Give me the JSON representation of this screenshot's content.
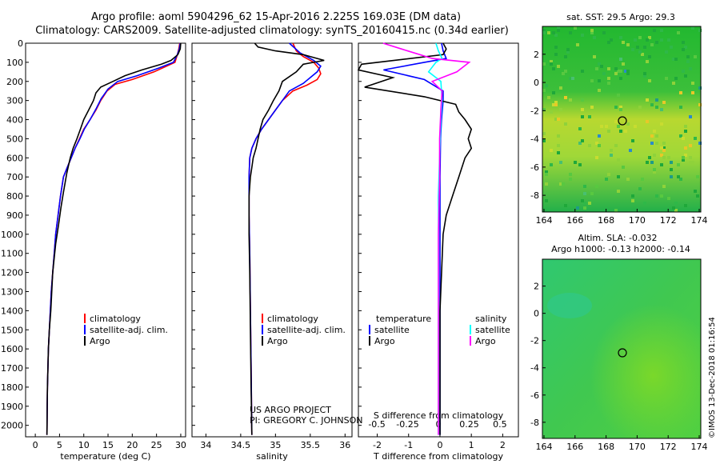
{
  "title": {
    "line1": "Argo profile: aoml 5904296_62 15-Apr-2016 2.225S 169.03E (DM data)",
    "line2": "Climatology: CARS2009. Satellite-adjusted climatology: synTS_20160415.nc (0.34d earlier)"
  },
  "colors": {
    "climatology": "#ff0000",
    "satellite": "#0000ff",
    "argo": "#000000",
    "sat_sal": "#00ffff",
    "argo_sal": "#ff00ff"
  },
  "depth_ticks": [
    "0",
    "100",
    "200",
    "300",
    "400",
    "500",
    "600",
    "700",
    "800",
    "900",
    "1000",
    "1100",
    "1200",
    "1300",
    "1400",
    "1500",
    "1600",
    "1700",
    "1800",
    "1900",
    "2000"
  ],
  "chart_data": [
    {
      "type": "line",
      "name": "temperature",
      "xlabel": "temperature (deg C)",
      "xlim": [
        -2,
        31
      ],
      "ylim": [
        2060,
        0
      ],
      "xticks": [
        0,
        5,
        10,
        15,
        20,
        25,
        30
      ],
      "xtick_labels": [
        "0",
        "5",
        "10",
        "15",
        "20",
        "25",
        "30"
      ],
      "legend": [
        "climatology",
        "satellite-adj. clim.",
        "Argo"
      ],
      "series": [
        {
          "name": "climatology",
          "color": "#ff0000",
          "x": [
            29.8,
            29.6,
            29.3,
            28.8,
            24.5,
            20.0,
            16.5,
            14.8,
            13.5,
            12.5,
            11.3,
            10.0,
            9.1,
            8.2,
            7.4,
            6.6,
            5.8,
            5.2,
            4.7,
            4.2,
            3.9,
            3.6,
            3.3,
            3.1,
            2.9,
            2.7,
            2.6,
            2.5,
            2.45,
            2.4
          ],
          "y": [
            0,
            30,
            60,
            100,
            150,
            190,
            215,
            250,
            300,
            350,
            400,
            450,
            500,
            550,
            600,
            650,
            700,
            800,
            900,
            1000,
            1100,
            1200,
            1300,
            1400,
            1500,
            1600,
            1700,
            1800,
            1900,
            2050
          ]
        },
        {
          "name": "satellite-adj. clim.",
          "color": "#0000ff",
          "x": [
            29.9,
            29.7,
            29.3,
            28.5,
            25.5,
            21.0,
            17.0,
            15.0,
            13.6,
            12.6,
            11.3,
            10.1,
            9.2,
            8.2,
            7.4,
            6.6,
            5.8,
            5.2,
            4.7,
            4.2,
            3.9,
            3.6,
            3.3,
            3.1,
            2.9,
            2.7,
            2.6,
            2.5,
            2.45,
            2.4
          ],
          "y": [
            0,
            30,
            60,
            100,
            130,
            170,
            200,
            240,
            290,
            340,
            400,
            450,
            500,
            550,
            600,
            650,
            700,
            800,
            900,
            1000,
            1100,
            1200,
            1300,
            1400,
            1500,
            1600,
            1700,
            1800,
            1900,
            2050
          ]
        },
        {
          "name": "Argo",
          "color": "#000000",
          "x": [
            30.0,
            29.9,
            29.4,
            28.0,
            26.0,
            22.0,
            18.5,
            16.0,
            13.5,
            12.5,
            12.0,
            11.0,
            10.0,
            9.3,
            8.6,
            7.8,
            7.2,
            6.5,
            5.8,
            5.3,
            4.8,
            4.2,
            3.6,
            3.2,
            2.9,
            2.7,
            2.6,
            2.5,
            2.45,
            2.4
          ],
          "y": [
            0,
            30,
            60,
            90,
            110,
            140,
            170,
            200,
            230,
            260,
            300,
            350,
            400,
            450,
            500,
            550,
            600,
            680,
            780,
            860,
            950,
            1050,
            1200,
            1400,
            1500,
            1600,
            1700,
            1800,
            1900,
            2050
          ]
        }
      ]
    },
    {
      "type": "line",
      "name": "salinity",
      "xlabel": "salinity",
      "xlim": [
        33.8,
        36.1
      ],
      "ylim": [
        2060,
        0
      ],
      "xticks": [
        34,
        34.5,
        35,
        35.5,
        36
      ],
      "xtick_labels": [
        "34",
        "34.5",
        "35",
        "35.5",
        "36"
      ],
      "legend": [
        "climatology",
        "satellite-adj. clim.",
        "Argo"
      ],
      "annotation": [
        "US ARGO PROJECT",
        "PI: GREGORY C. JOHNSON"
      ],
      "series": [
        {
          "name": "climatology",
          "color": "#ff0000",
          "x": [
            35.25,
            35.3,
            35.4,
            35.55,
            35.62,
            35.65,
            35.6,
            35.45,
            35.25,
            35.1,
            35.0,
            34.9,
            34.8,
            34.72,
            34.66,
            34.63,
            34.62,
            34.62,
            34.63,
            34.64,
            34.65,
            34.66
          ],
          "y": [
            0,
            40,
            70,
            100,
            130,
            160,
            190,
            220,
            250,
            300,
            350,
            400,
            450,
            500,
            550,
            600,
            700,
            900,
            1100,
            1400,
            1700,
            2050
          ]
        },
        {
          "name": "satellite-adj. clim.",
          "color": "#0000ff",
          "x": [
            35.2,
            35.35,
            35.55,
            35.65,
            35.6,
            35.5,
            35.4,
            35.2,
            35.1,
            35.0,
            34.9,
            34.8,
            34.72,
            34.66,
            34.63,
            34.62,
            34.62,
            34.63,
            34.64,
            34.65,
            34.66
          ],
          "y": [
            0,
            50,
            90,
            120,
            150,
            180,
            210,
            250,
            300,
            350,
            400,
            450,
            500,
            550,
            600,
            700,
            900,
            1100,
            1400,
            1700,
            2050
          ]
        },
        {
          "name": "Argo",
          "color": "#000000",
          "x": [
            34.7,
            34.75,
            35.0,
            35.4,
            35.7,
            35.4,
            35.3,
            35.1,
            35.05,
            34.97,
            34.9,
            34.82,
            34.78,
            34.75,
            34.72,
            34.68,
            34.66,
            34.64,
            34.62,
            34.62,
            34.63,
            34.64,
            34.65,
            34.66
          ],
          "y": [
            0,
            20,
            40,
            60,
            90,
            110,
            150,
            200,
            250,
            300,
            350,
            400,
            450,
            500,
            550,
            600,
            650,
            700,
            800,
            1000,
            1200,
            1500,
            1800,
            2050
          ]
        }
      ]
    },
    {
      "type": "line",
      "name": "difference",
      "xlabel": "T difference from climatology",
      "xlabel2": "S difference from climatology",
      "xlim": [
        -2.6,
        2.5
      ],
      "ylim": [
        2060,
        0
      ],
      "xticks": [
        -2,
        -1,
        0,
        1,
        2
      ],
      "xtick_labels": [
        "-2",
        "-1",
        "0",
        "1",
        "2"
      ],
      "xticks2": [
        -0.5,
        -0.25,
        0,
        0.25,
        0.5
      ],
      "xtick2_labels": [
        "-0.5",
        "-0.25",
        "0",
        "0.25",
        "0.5"
      ],
      "legend_headers": [
        "temperature",
        "salinity"
      ],
      "legend_left": [
        "satellite",
        "Argo"
      ],
      "legend_right": [
        "satellite",
        "Argo"
      ],
      "series": [
        {
          "name": "temperature satellite",
          "color": "#0000ff",
          "x": [
            0.05,
            0.1,
            0.2,
            -0.5,
            -1.8,
            -0.5,
            0.1,
            0.1,
            0.05,
            0.02,
            0,
            0,
            0,
            0,
            0
          ],
          "y": [
            0,
            40,
            80,
            100,
            140,
            190,
            250,
            300,
            400,
            500,
            700,
            1000,
            1400,
            1800,
            2050
          ]
        },
        {
          "name": "temperature Argo",
          "color": "#000000",
          "x": [
            0.1,
            0.2,
            0.1,
            -2.5,
            -2.6,
            -1.5,
            -2.4,
            -0.5,
            0.5,
            0.6,
            0.8,
            1.0,
            0.9,
            1.0,
            0.8,
            0.6,
            0.4,
            0.2,
            0.1,
            0,
            0
          ],
          "y": [
            0,
            30,
            60,
            110,
            140,
            180,
            230,
            280,
            320,
            360,
            400,
            450,
            500,
            550,
            600,
            700,
            800,
            900,
            1000,
            1400,
            2050
          ]
        },
        {
          "name": "salinity satellite",
          "color": "#00ffff",
          "x": [
            -0.02,
            0.0,
            0.03,
            -0.02,
            -0.08,
            0.02,
            0.03,
            0.02,
            0.01,
            0,
            0,
            0,
            0
          ],
          "y": [
            0,
            40,
            80,
            100,
            150,
            200,
            300,
            400,
            600,
            800,
            1200,
            1600,
            2050
          ]
        },
        {
          "name": "salinity Argo",
          "color": "#ff00ff",
          "x": [
            -0.45,
            -0.3,
            -0.15,
            -0.05,
            0.25,
            0.15,
            -0.05,
            0.03,
            0.02,
            0.01,
            0.01,
            0,
            0,
            0
          ],
          "y": [
            0,
            30,
            60,
            80,
            100,
            150,
            200,
            250,
            350,
            500,
            700,
            1000,
            1500,
            2050
          ]
        }
      ]
    }
  ],
  "maps": [
    {
      "name": "sst",
      "title": "sat. SST: 29.5 Argo: 29.3",
      "xticks": [
        "164",
        "166",
        "168",
        "170",
        "172",
        "174"
      ],
      "yticks": [
        "2",
        "0",
        "-2",
        "-4",
        "-6",
        "-8"
      ],
      "float_position": {
        "lon": 169.03,
        "lat": -2.225
      }
    },
    {
      "name": "sla",
      "title": "Altim. SLA: -0.032",
      "subtitle": "Argo h1000: -0.13 h2000: -0.14",
      "xticks": [
        "164",
        "166",
        "168",
        "170",
        "172",
        "174"
      ],
      "yticks": [
        "2",
        "0",
        "-2",
        "-4",
        "-6",
        "-8"
      ],
      "float_position": {
        "lon": 169.03,
        "lat": -2.225
      }
    }
  ],
  "credit": "©IMOS 13-Dec-2018 01:16:54"
}
